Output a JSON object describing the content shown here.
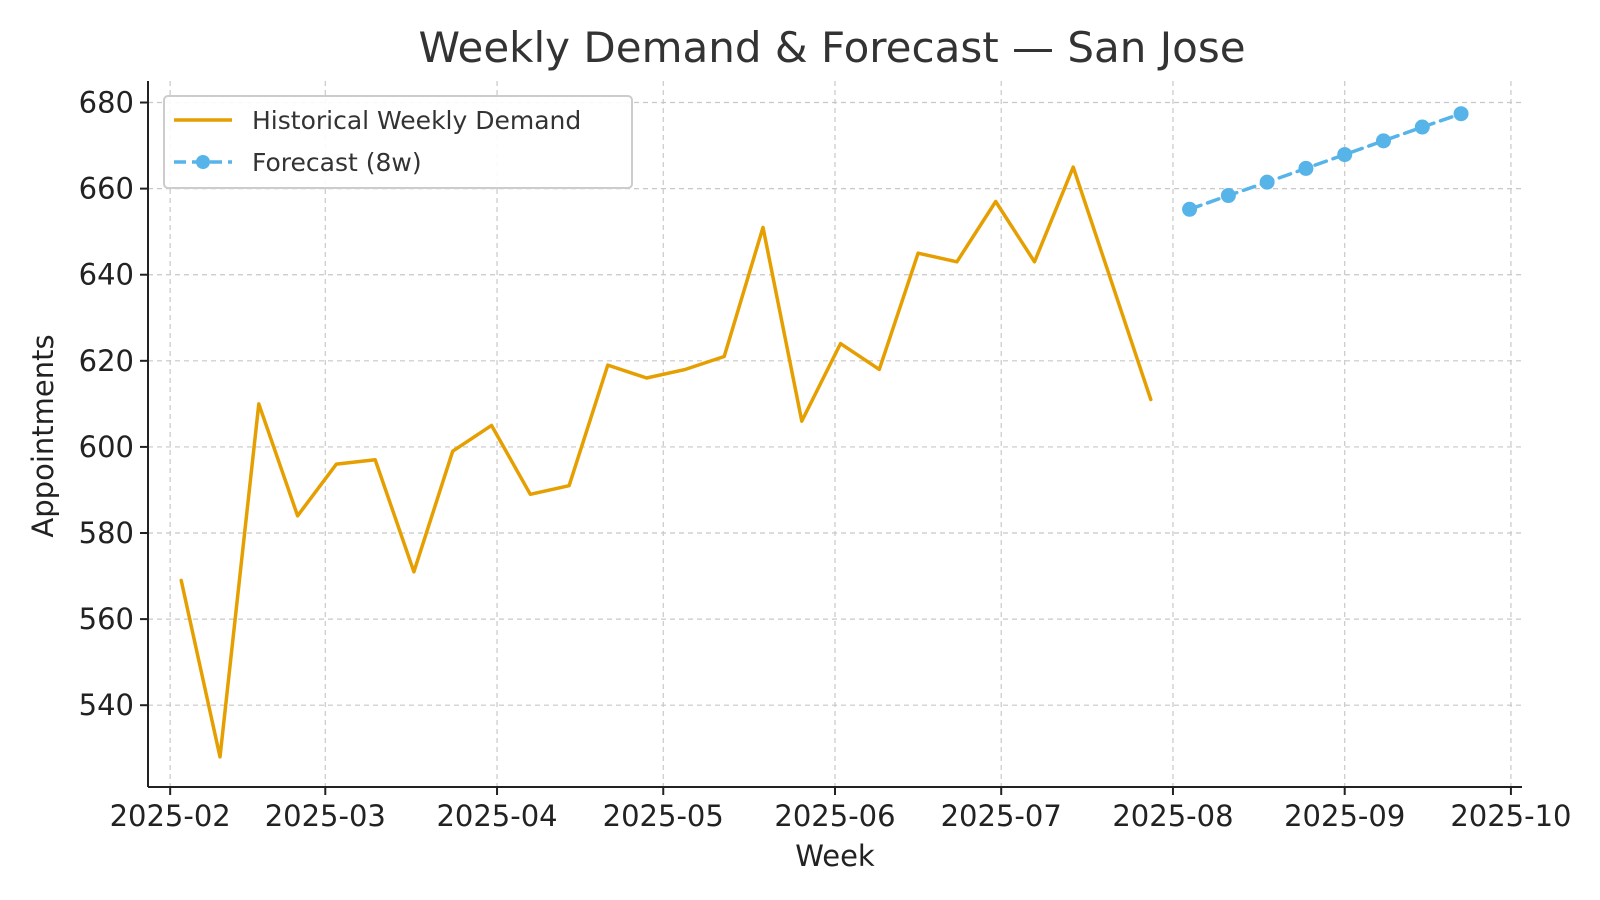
{
  "chart_data": {
    "type": "line",
    "title": "Weekly Demand & Forecast — San Jose",
    "xlabel": "Week",
    "ylabel": "Appointments",
    "xlim": [
      "2025-01-28",
      "2025-10-03"
    ],
    "ylim": [
      521,
      685
    ],
    "grid": true,
    "legend_position": "top-left",
    "x_ticks": [
      "2025-02-01",
      "2025-03-01",
      "2025-04-01",
      "2025-05-01",
      "2025-06-01",
      "2025-07-01",
      "2025-08-01",
      "2025-09-01",
      "2025-10-01"
    ],
    "x_tick_labels": [
      "2025-02",
      "2025-03",
      "2025-04",
      "2025-05",
      "2025-06",
      "2025-07",
      "2025-08",
      "2025-09",
      "2025-10"
    ],
    "y_ticks": [
      540,
      560,
      580,
      600,
      620,
      640,
      660,
      680
    ],
    "y_tick_labels": [
      "540",
      "560",
      "580",
      "600",
      "620",
      "640",
      "660",
      "680"
    ],
    "series": [
      {
        "name": "Historical Weekly Demand",
        "style": "solid",
        "color": "#E69F00",
        "x": [
          "2025-02-03",
          "2025-02-10",
          "2025-02-17",
          "2025-02-24",
          "2025-03-03",
          "2025-03-10",
          "2025-03-17",
          "2025-03-24",
          "2025-03-31",
          "2025-04-07",
          "2025-04-14",
          "2025-04-21",
          "2025-04-28",
          "2025-05-05",
          "2025-05-12",
          "2025-05-19",
          "2025-05-26",
          "2025-06-02",
          "2025-06-09",
          "2025-06-16",
          "2025-06-23",
          "2025-06-30",
          "2025-07-07",
          "2025-07-14",
          "2025-07-21",
          "2025-07-28"
        ],
        "y": [
          569,
          528,
          610,
          584,
          596,
          597,
          571,
          599,
          605,
          589,
          591,
          619,
          616,
          618,
          621,
          651,
          606,
          624,
          618,
          645,
          643,
          657,
          643,
          665,
          638,
          611
        ]
      },
      {
        "name": "Forecast (8w)",
        "style": "dashed",
        "marker": "circle",
        "color": "#56B4E9",
        "x": [
          "2025-08-04",
          "2025-08-11",
          "2025-08-18",
          "2025-08-25",
          "2025-09-01",
          "2025-09-08",
          "2025-09-15",
          "2025-09-22"
        ],
        "y": [
          655.2,
          658.4,
          661.5,
          664.7,
          667.9,
          671.1,
          674.3,
          677.4
        ]
      }
    ]
  }
}
